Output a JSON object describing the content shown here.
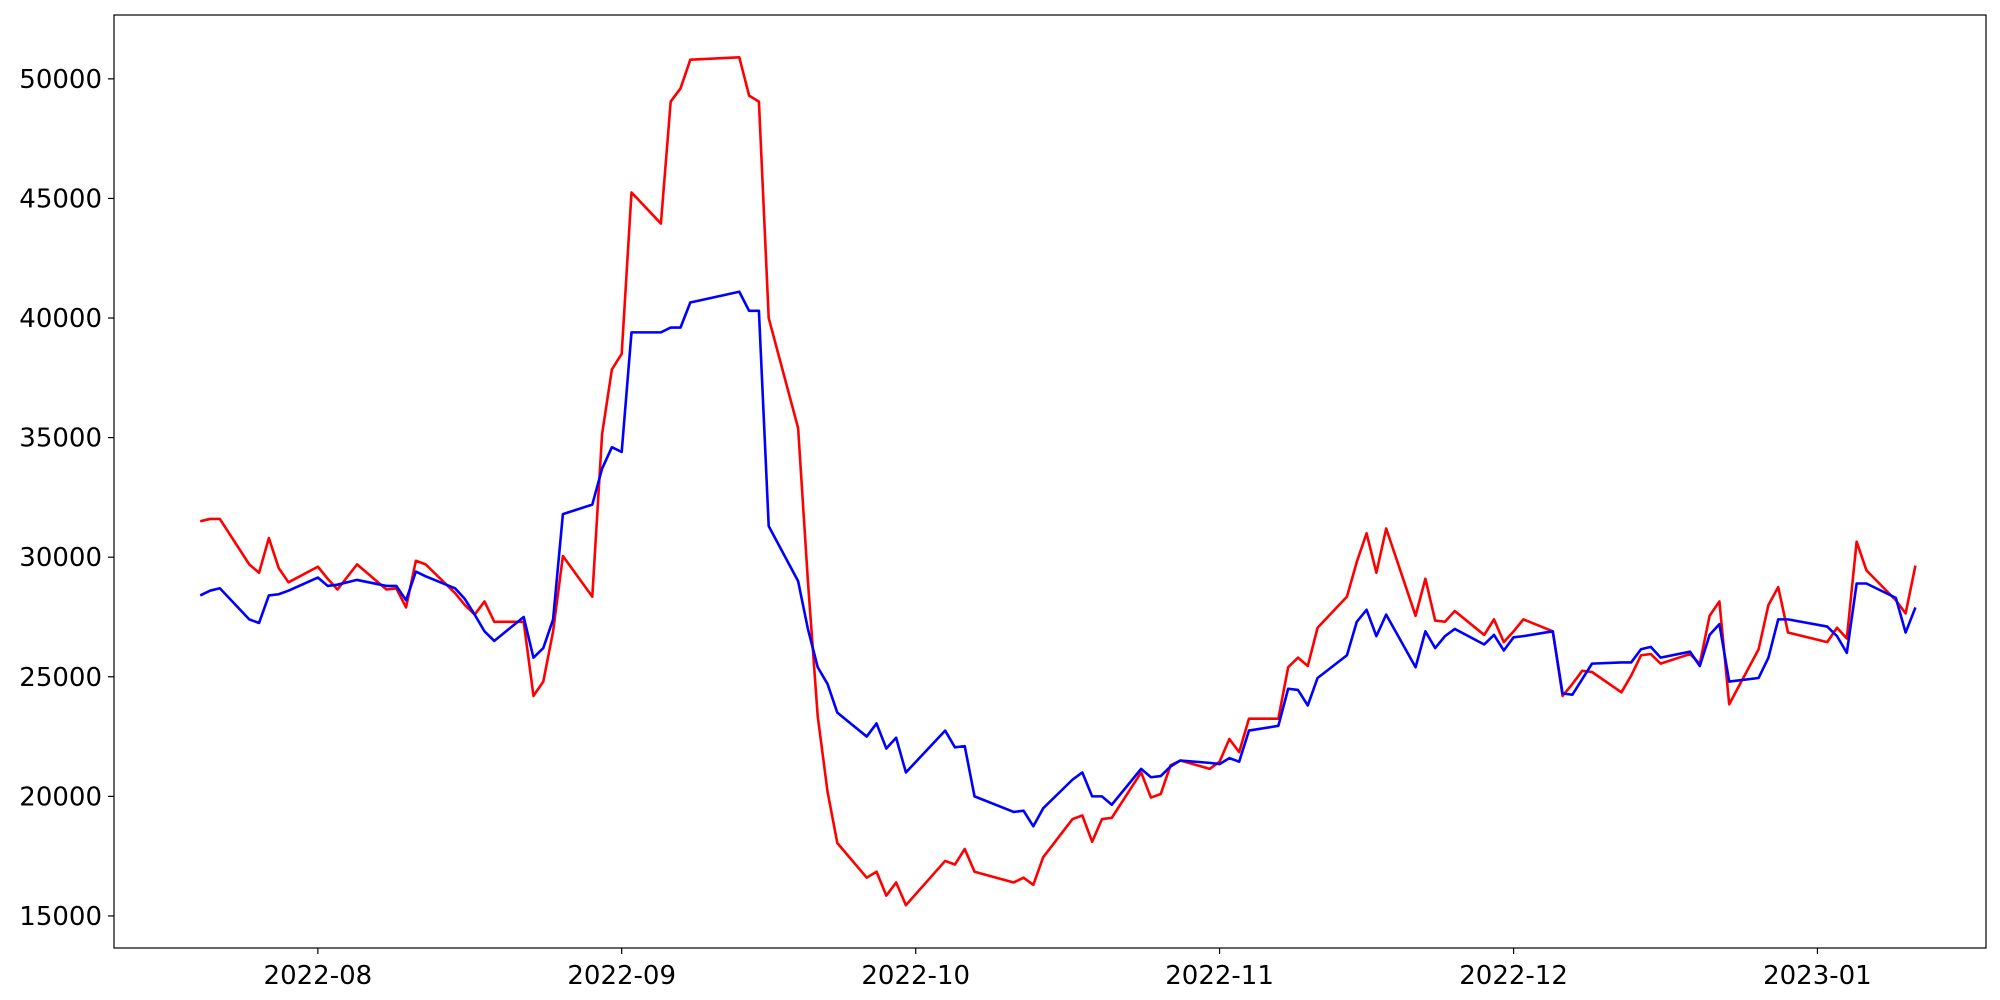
{
  "chart_data": {
    "type": "line",
    "x": [
      19193,
      19194,
      19195,
      19198,
      19199,
      19200,
      19201,
      19202,
      19205,
      19206,
      19207,
      19209,
      19212,
      19213,
      19214,
      19215,
      19216,
      19219,
      19220,
      19221,
      19222,
      19223,
      19226,
      19227,
      19228,
      19229,
      19230,
      19233,
      19234,
      19235,
      19236,
      19237,
      19240,
      19241,
      19242,
      19243,
      19248,
      19249,
      19250,
      19251,
      19254,
      19255,
      19256,
      19257,
      19258,
      19261,
      19262,
      19263,
      19264,
      19265,
      19269,
      19270,
      19271,
      19272,
      19276,
      19277,
      19278,
      19279,
      19282,
      19283,
      19284,
      19285,
      19286,
      19289,
      19290,
      19291,
      19292,
      19293,
      19296,
      19297,
      19298,
      19299,
      19300,
      19303,
      19304,
      19305,
      19306,
      19307,
      19310,
      19311,
      19312,
      19313,
      19314,
      19317,
      19318,
      19319,
      19320,
      19321,
      19324,
      19325,
      19326,
      19327,
      19328,
      19331,
      19332,
      19333,
      19334,
      19335,
      19338,
      19339,
      19340,
      19341,
      19342,
      19345,
      19346,
      19347,
      19348,
      19349,
      19352,
      19353,
      19354,
      19355,
      19359,
      19360,
      19361,
      19362,
      19363,
      19366,
      19367,
      19368
    ],
    "series": [
      {
        "color": "#ff0000",
        "values": [
          31500,
          31600,
          31600,
          29700,
          29350,
          30800,
          29550,
          28950,
          29600,
          29100,
          28650,
          29700,
          28650,
          28700,
          27900,
          29850,
          29700,
          28500,
          28000,
          27600,
          28150,
          27300,
          27300,
          24200,
          24800,
          26900,
          30050,
          28350,
          35150,
          37850,
          38500,
          45250,
          43950,
          49050,
          49600,
          50800,
          50900,
          49300,
          49050,
          40000,
          35400,
          29000,
          23350,
          20200,
          18050,
          16600,
          16850,
          15850,
          16400,
          15450,
          17300,
          17150,
          17800,
          16850,
          16400,
          16600,
          16300,
          17450,
          19050,
          19200,
          18100,
          19050,
          19100,
          21000,
          19950,
          20100,
          21300,
          21500,
          21150,
          21450,
          22400,
          21850,
          23250,
          23250,
          25400,
          25800,
          25450,
          27050,
          28350,
          29800,
          31000,
          29350,
          31200,
          27550,
          29100,
          27350,
          27300,
          27750,
          26750,
          27400,
          26450,
          26900,
          27400,
          26900,
          24200,
          24700,
          25250,
          25200,
          24350,
          25050,
          25900,
          25950,
          25550,
          25950,
          25550,
          27550,
          28150,
          23850,
          26150,
          28000,
          28750,
          26850,
          26450,
          27050,
          26600,
          30650,
          29450,
          28200,
          27650,
          29650
        ]
      },
      {
        "color": "#0000ff",
        "values": [
          28400,
          28600,
          28700,
          27400,
          27250,
          28400,
          28450,
          28600,
          29150,
          28800,
          28850,
          29050,
          28800,
          28800,
          28200,
          29400,
          29200,
          28700,
          28250,
          27600,
          26900,
          26500,
          27500,
          25800,
          26200,
          27400,
          31800,
          32200,
          33700,
          34600,
          34400,
          39400,
          39400,
          39600,
          39600,
          40650,
          41100,
          40300,
          40300,
          31300,
          29000,
          27000,
          25400,
          24700,
          23500,
          22500,
          23050,
          22000,
          22450,
          21000,
          22750,
          22050,
          22100,
          20000,
          19350,
          19400,
          18750,
          19500,
          20700,
          21000,
          20000,
          20000,
          19650,
          21150,
          20800,
          20850,
          21250,
          21500,
          21400,
          21350,
          21600,
          21450,
          22750,
          22950,
          24500,
          24450,
          23800,
          24950,
          25900,
          27300,
          27800,
          26700,
          27600,
          25400,
          26900,
          26200,
          26700,
          27000,
          26350,
          26750,
          26100,
          26650,
          26700,
          26900,
          24300,
          24250,
          24900,
          25550,
          25600,
          25600,
          26150,
          26250,
          25800,
          26050,
          25450,
          26750,
          27200,
          24800,
          24950,
          25800,
          27400,
          27400,
          27100,
          26700,
          26000,
          28900,
          28900,
          28300,
          26850,
          27900
        ]
      }
    ],
    "xlim": [
      19184.2,
      19375.2
    ],
    "xticks": [
      {
        "value": 19205,
        "label": "2022-08"
      },
      {
        "value": 19236,
        "label": "2022-09"
      },
      {
        "value": 19266,
        "label": "2022-10"
      },
      {
        "value": 19297,
        "label": "2022-11"
      },
      {
        "value": 19327,
        "label": "2022-12"
      },
      {
        "value": 19358,
        "label": "2023-01"
      }
    ],
    "ylim": [
      13660,
      52670
    ],
    "yticks": [
      15000,
      20000,
      25000,
      30000,
      35000,
      40000,
      45000,
      50000
    ],
    "grid": false
  }
}
